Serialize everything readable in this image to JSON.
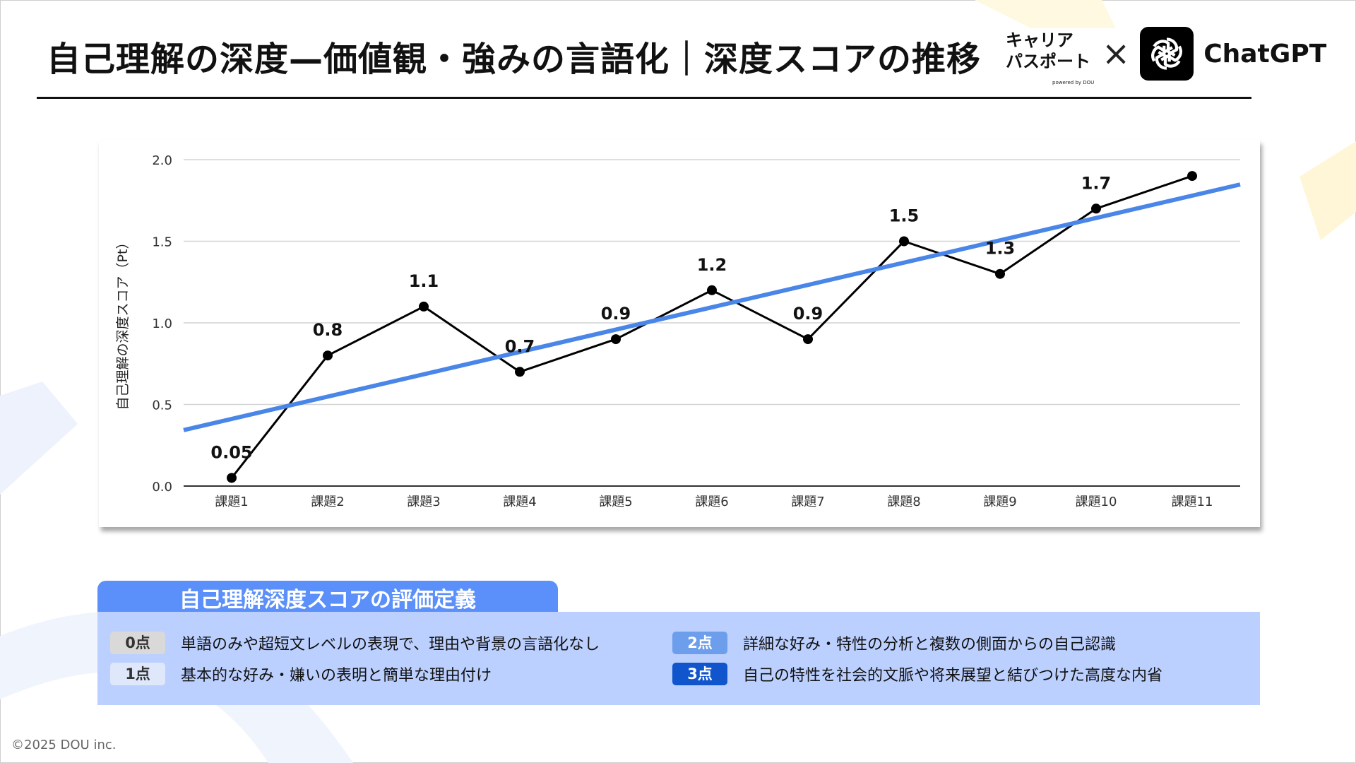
{
  "header": {
    "title": "自己理解の深度—価値観・強みの言語化｜深度スコアの推移",
    "brand": {
      "career_passport_line1": "キャリア",
      "career_passport_line2": "パスポート",
      "powered_by": "powered by DOU",
      "times_symbol": "×",
      "chatgpt": "ChatGPT"
    }
  },
  "chart_data": {
    "type": "line",
    "title": "",
    "xlabel": "",
    "ylabel": "自己理解の深度スコア（Pt）",
    "categories": [
      "課題1",
      "課題2",
      "課題3",
      "課題4",
      "課題5",
      "課題6",
      "課題7",
      "課題8",
      "課題9",
      "課題10",
      "課題11"
    ],
    "series": [
      {
        "values": [
          0.05,
          0.8,
          1.1,
          0.7,
          0.9,
          1.2,
          0.9,
          1.5,
          1.3,
          1.7,
          1.9
        ],
        "color": "#000000"
      }
    ],
    "data_labels": [
      "0.05",
      "0.8",
      "1.1",
      "0.7",
      "0.9",
      "1.2",
      "0.9",
      "1.5",
      "1.3",
      "1.7",
      ""
    ],
    "trendline": {
      "type": "linear",
      "color": "#4a86e8"
    },
    "ylim": [
      0,
      2.0
    ],
    "yticks": [
      "0.0",
      "0.5",
      "1.0",
      "1.5",
      "2.0"
    ],
    "grid": true,
    "legend": "none"
  },
  "legend_box": {
    "title": "自己理解深度スコアの評価定義",
    "items": [
      {
        "badge": "0点",
        "text": "単語のみや超短文レベルの表現で、理由や背景の言語化なし",
        "badge_bg": "#d9d9d9",
        "badge_fg": "#333333"
      },
      {
        "badge": "1点",
        "text": "基本的な好み・嫌いの表明と簡単な理由付け",
        "badge_bg": "#dfe8fb",
        "badge_fg": "#333333"
      },
      {
        "badge": "2点",
        "text": "詳細な好み・特性の分析と複数の側面からの自己認識",
        "badge_bg": "#6d9eeb",
        "badge_fg": "#ffffff"
      },
      {
        "badge": "3点",
        "text": "自己の特性を社会的文脈や将来展望と結びつけた高度な内省",
        "badge_bg": "#1155cc",
        "badge_fg": "#ffffff"
      }
    ]
  },
  "footer": {
    "copyright": "©2025 DOU inc."
  },
  "colors": {
    "accent": "#4a86e8",
    "tab": "#5b8ff9",
    "legend_bg": "#bcd0ff"
  }
}
